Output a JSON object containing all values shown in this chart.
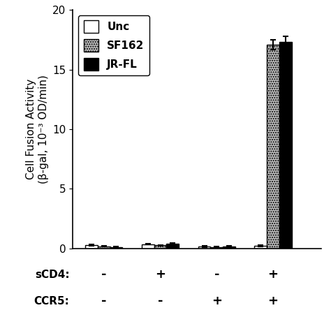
{
  "groups": [
    {
      "sCD4": "-",
      "CCR5": "-"
    },
    {
      "sCD4": "+",
      "CCR5": "-"
    },
    {
      "sCD4": "-",
      "CCR5": "+"
    },
    {
      "sCD4": "+",
      "CCR5": "+"
    }
  ],
  "series": [
    {
      "label": "Unc",
      "color": "white",
      "hatch": "",
      "edgecolor": "black",
      "values": [
        0.25,
        0.35,
        0.15,
        0.2
      ],
      "errors": [
        0.05,
        0.05,
        0.05,
        0.05
      ]
    },
    {
      "label": "SF162",
      "color": "#bbbbbb",
      "hatch": ".....",
      "edgecolor": "black",
      "values": [
        0.15,
        0.25,
        0.1,
        17.1
      ],
      "errors": [
        0.03,
        0.04,
        0.03,
        0.4
      ]
    },
    {
      "label": "JR-FL",
      "color": "black",
      "hatch": "",
      "edgecolor": "black",
      "values": [
        0.1,
        0.4,
        0.15,
        17.3
      ],
      "errors": [
        0.03,
        0.06,
        0.03,
        0.5
      ]
    }
  ],
  "ylim": [
    0,
    20
  ],
  "yticks": [
    0,
    5,
    10,
    15,
    20
  ],
  "ylabel": "Cell Fusion Activity\n(β-gal, 10⁻³ OD/min)",
  "bar_width": 0.22,
  "group_positions": [
    1,
    2,
    3,
    4
  ],
  "figsize": [
    4.74,
    4.74
  ],
  "dpi": 100,
  "background_color": "white",
  "scd4_row_label": "sCD4:",
  "ccr5_row_label": "CCR5:"
}
